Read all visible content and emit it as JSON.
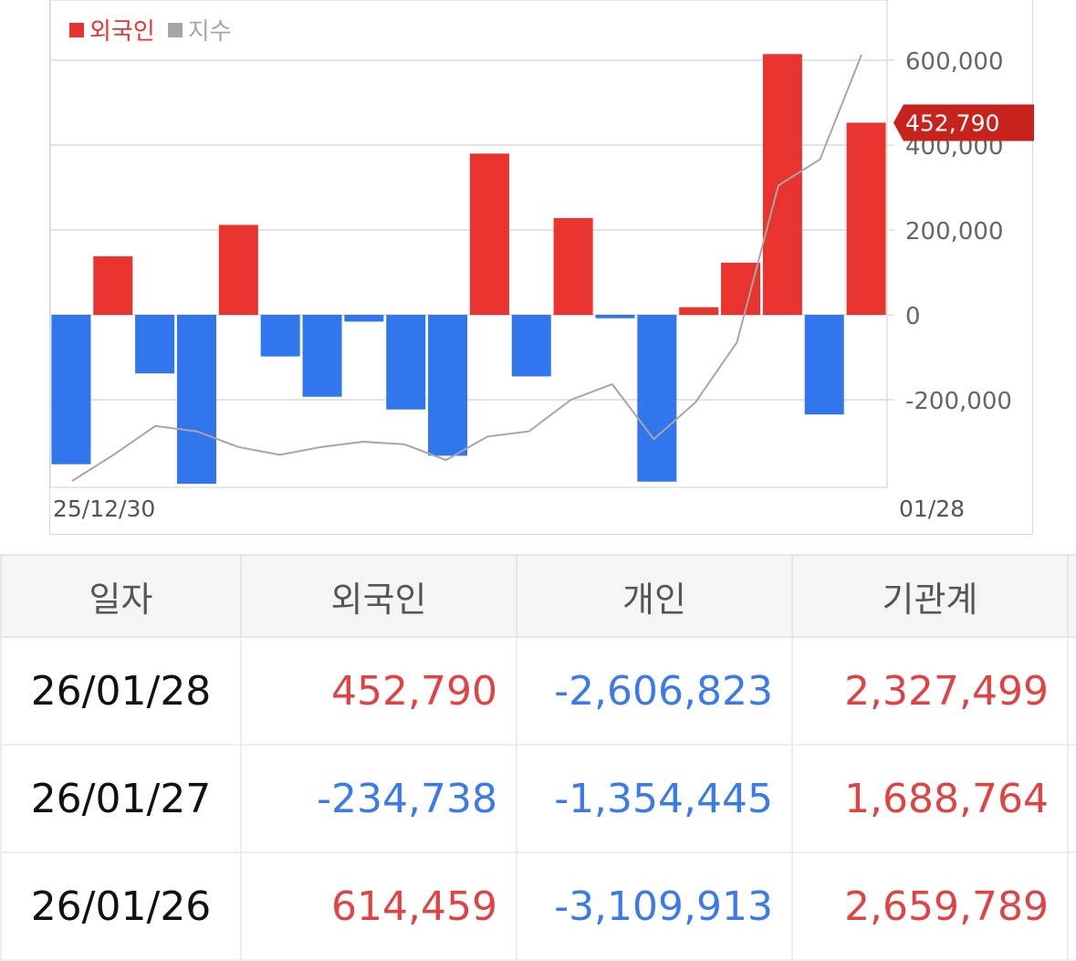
{
  "chart_data": {
    "type": "bar",
    "x_start_label": "25/12/30",
    "x_end_label": "01/28",
    "series": [
      {
        "name": "외국인",
        "values": [
          -352000,
          138000,
          -138000,
          -398000,
          212000,
          -98000,
          -193000,
          -16000,
          -223000,
          -332000,
          380000,
          -145000,
          228000,
          -8000,
          -393000,
          18000,
          123000,
          614459,
          -234738,
          452790
        ]
      },
      {
        "name": "지수",
        "values": [
          1.0,
          2.0,
          3.1,
          2.9,
          2.3,
          2.0,
          2.3,
          2.5,
          2.4,
          1.8,
          2.7,
          2.9,
          4.1,
          4.7,
          2.6,
          4.0,
          6.3,
          12.3,
          13.3,
          17.3
        ]
      }
    ],
    "yticks": [
      600000,
      400000,
      200000,
      0,
      -200000
    ],
    "ytick_labels": [
      "600,000",
      "400,000",
      "200,000",
      "0",
      "-200,000"
    ],
    "ylim": [
      -420000,
      700000
    ],
    "last_value_label": "452,790",
    "grid": true,
    "legend_position": "top-left"
  },
  "legend": {
    "foreign_label": "외국인",
    "index_label": "지수"
  },
  "colors": {
    "positive": "#e8332e",
    "negative": "#3276ee",
    "index_line": "#a6a6a6",
    "badge": "#c7221c"
  },
  "table": {
    "headers": [
      "일자",
      "외국인",
      "개인",
      "기관계"
    ],
    "rows": [
      {
        "date": "26/01/28",
        "foreign": "452,790",
        "individual": "-2,606,823",
        "institution": "2,327,499"
      },
      {
        "date": "26/01/27",
        "foreign": "-234,738",
        "individual": "-1,354,445",
        "institution": "1,688,764"
      },
      {
        "date": "26/01/26",
        "foreign": "614,459",
        "individual": "-3,109,913",
        "institution": "2,659,789"
      }
    ]
  }
}
